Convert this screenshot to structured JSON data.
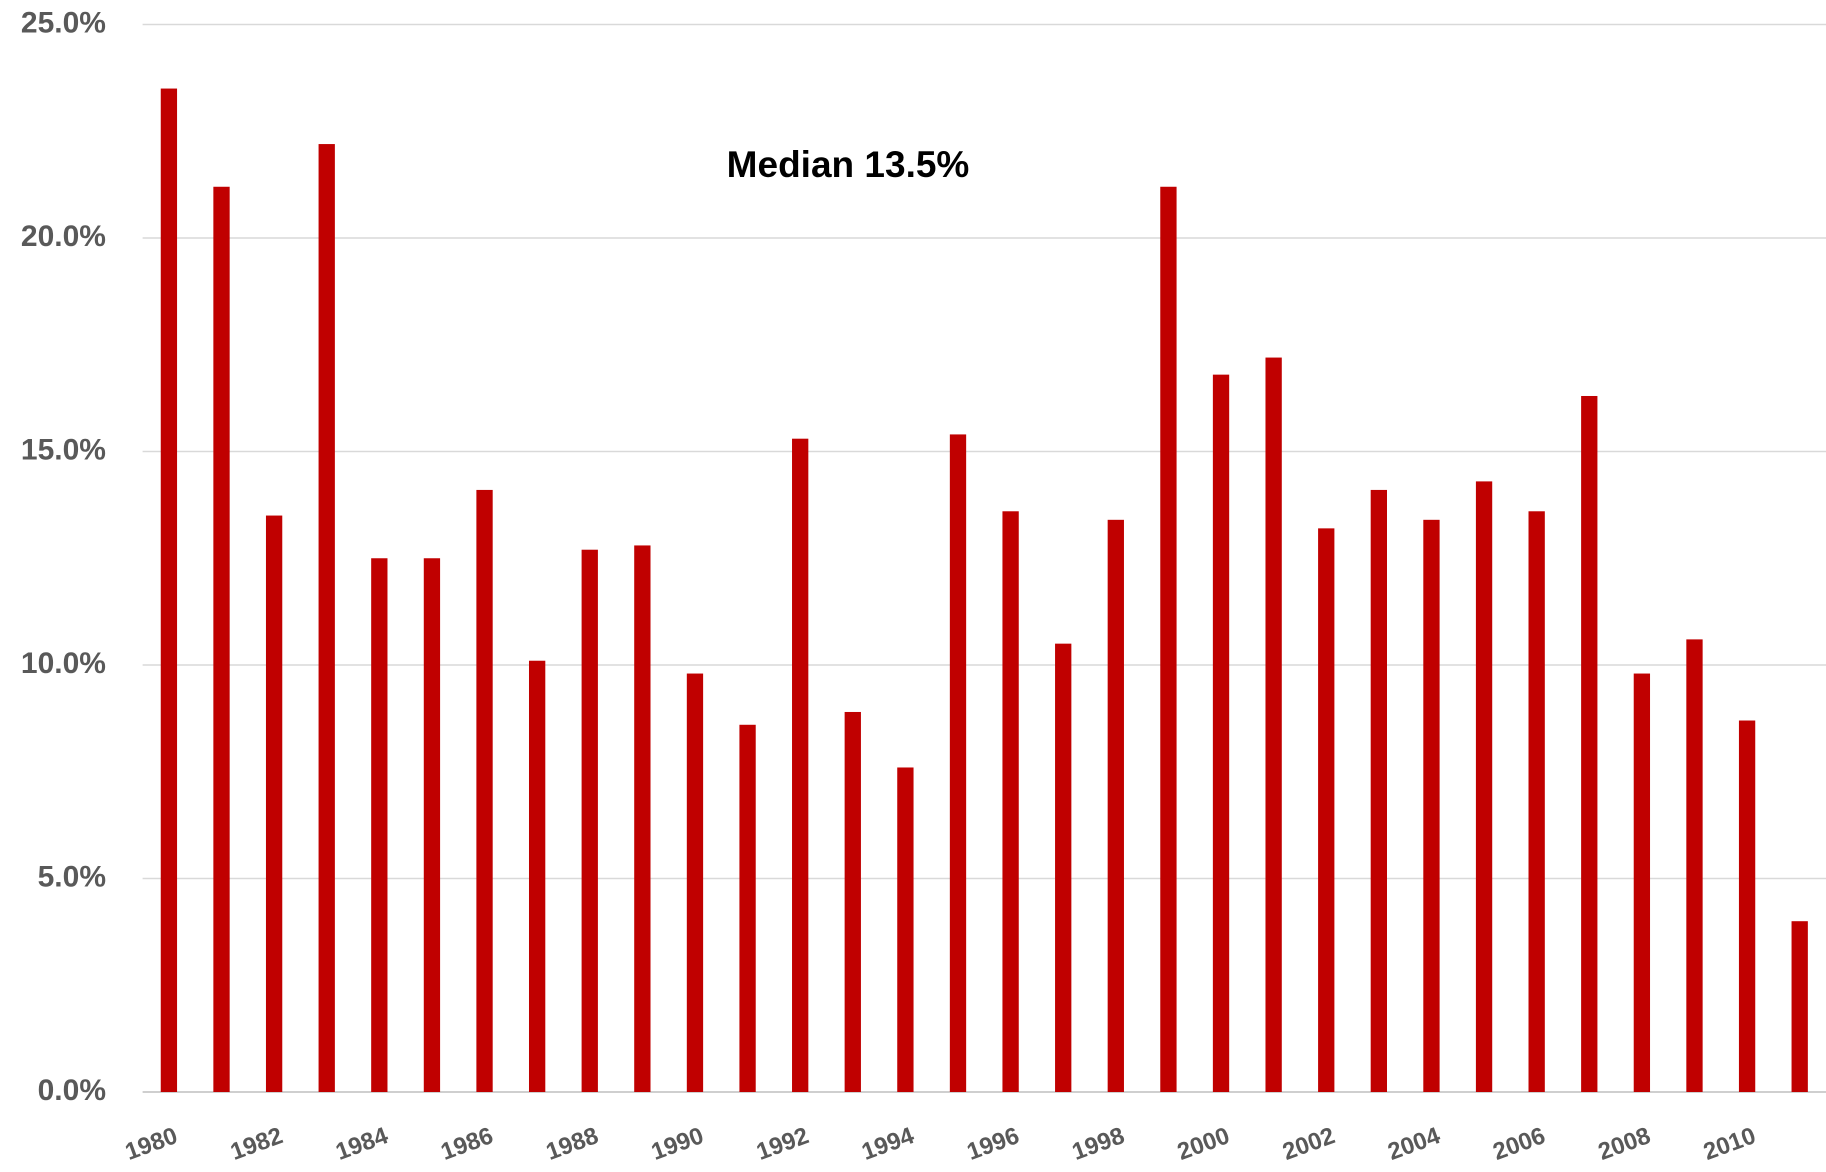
{
  "chart_data": {
    "type": "bar",
    "annotation": "Median 13.5%",
    "categories": [
      "1980",
      null,
      "1982",
      null,
      "1984",
      null,
      "1986",
      null,
      "1988",
      null,
      "1990",
      null,
      "1992",
      null,
      "1994",
      null,
      "1996",
      null,
      "1998",
      null,
      "2000",
      null,
      "2002",
      null,
      "2004",
      null,
      "2006",
      null,
      "2008",
      null,
      "2010",
      null
    ],
    "values": [
      23.5,
      21.2,
      13.5,
      22.2,
      12.5,
      12.5,
      14.1,
      10.1,
      12.7,
      12.8,
      9.8,
      8.6,
      15.3,
      8.9,
      7.6,
      15.4,
      13.6,
      10.5,
      13.4,
      21.2,
      16.8,
      17.2,
      13.2,
      14.1,
      13.4,
      14.3,
      13.6,
      16.3,
      9.8,
      10.6,
      8.7,
      4.0
    ],
    "color": "#c00000",
    "ylim": [
      0,
      25
    ],
    "yticks": [
      {
        "value": 0,
        "label": "0.0%"
      },
      {
        "value": 5,
        "label": "5.0%"
      },
      {
        "value": 10,
        "label": "10.0%"
      },
      {
        "value": 15,
        "label": "15.0%"
      },
      {
        "value": 20,
        "label": "20.0%"
      },
      {
        "value": 25,
        "label": "25.0%"
      }
    ],
    "grid": true
  }
}
